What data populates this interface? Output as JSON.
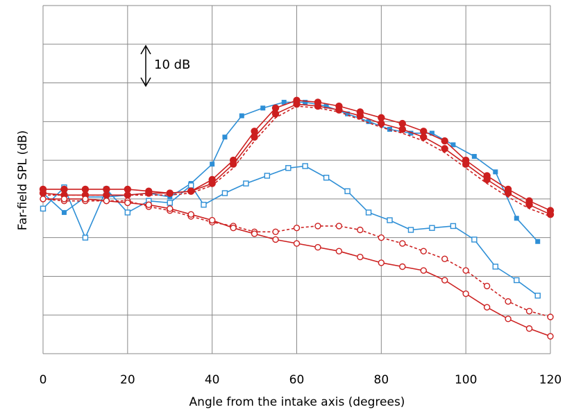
{
  "chart_data": {
    "type": "line",
    "title": "",
    "xlabel": "Angle from the intake axis (degrees)",
    "ylabel": "Far-field SPL (dB)",
    "xlim": [
      0,
      120
    ],
    "ylim": [
      0,
      90
    ],
    "x_ticks": [
      "0",
      "20",
      "40",
      "60",
      "80",
      "100",
      "120"
    ],
    "grid": true,
    "annotation": {
      "text": "10 dB",
      "note": "vertical double arrow marking a 10 dB span"
    },
    "colors": {
      "blue": "#2e8fd6",
      "red": "#cc1f1f",
      "grid": "#888888"
    },
    "series": [
      {
        "marker": "filled-square",
        "color": "#2e8fd6",
        "style": "solid",
        "x": [
          0,
          5,
          10,
          15,
          20,
          25,
          30,
          35,
          40,
          43,
          47,
          52,
          57,
          62,
          67,
          72,
          77,
          82,
          87,
          92,
          97,
          102,
          107,
          112,
          117
        ],
        "y": [
          41.5,
          36.5,
          40.5,
          40.5,
          41,
          41.5,
          40.5,
          44,
          49,
          56,
          61.5,
          63.5,
          65,
          65,
          64,
          62,
          60,
          58,
          57,
          57,
          54,
          51,
          47,
          35,
          29
        ]
      },
      {
        "marker": "open-square",
        "color": "#2e8fd6",
        "style": "solid",
        "x": [
          0,
          5,
          10,
          15,
          20,
          25,
          30,
          35,
          38,
          43,
          48,
          53,
          58,
          62,
          67,
          72,
          77,
          82,
          87,
          92,
          97,
          102,
          107,
          112,
          117
        ],
        "y": [
          37.5,
          43,
          30,
          42.5,
          36.5,
          39.5,
          39,
          43.5,
          38.5,
          41.5,
          44,
          46,
          48,
          48.5,
          45.5,
          42,
          36.5,
          34.5,
          32,
          32.5,
          33,
          29.5,
          22.5,
          19,
          15
        ]
      },
      {
        "marker": "filled-circle",
        "color": "#cc1f1f",
        "style": "solid",
        "x": [
          0,
          5,
          10,
          15,
          20,
          25,
          30,
          35,
          40,
          45,
          50,
          55,
          60,
          65,
          70,
          75,
          80,
          85,
          90,
          95,
          100,
          105,
          110,
          115,
          120
        ],
        "y": [
          42.5,
          42.5,
          42.5,
          42.5,
          42.5,
          42,
          41.5,
          42,
          45,
          50,
          57.5,
          63.5,
          65.5,
          65,
          64,
          62.5,
          61,
          59.5,
          57.5,
          55,
          50,
          46,
          42.5,
          39.5,
          37
        ]
      },
      {
        "marker": "filled-circle",
        "color": "#cc1f1f",
        "style": "solid",
        "x": [
          0,
          5,
          10,
          15,
          20,
          25,
          30,
          35,
          40,
          45,
          50,
          55,
          60,
          65,
          70,
          75,
          80,
          85,
          90,
          95,
          100,
          105,
          110,
          115,
          120
        ],
        "y": [
          41.5,
          41,
          41,
          41,
          41,
          41.5,
          41.5,
          42,
          44,
          49,
          56,
          62,
          64.5,
          64,
          63,
          61.5,
          59.5,
          58,
          56,
          53,
          49,
          45,
          41.5,
          38.5,
          36
        ]
      },
      {
        "marker": "none",
        "color": "#cc1f1f",
        "style": "dashed",
        "x": [
          0,
          5,
          10,
          15,
          20,
          25,
          30,
          35,
          40,
          45,
          50,
          55,
          60,
          65,
          70,
          75,
          80,
          85,
          90,
          95,
          100,
          105,
          110,
          115,
          120
        ],
        "y": [
          41,
          41,
          41,
          41,
          41,
          41,
          41,
          41.5,
          43.5,
          48,
          55,
          61,
          64,
          63.5,
          62.5,
          60.5,
          58.5,
          57,
          55,
          52,
          48,
          44,
          40.5,
          37.5,
          35.5
        ]
      },
      {
        "marker": "open-circle",
        "color": "#cc1f1f",
        "style": "dashed",
        "x": [
          0,
          5,
          10,
          15,
          20,
          25,
          30,
          35,
          40,
          45,
          50,
          55,
          60,
          65,
          70,
          75,
          80,
          85,
          90,
          95,
          100,
          105,
          110,
          115,
          120
        ],
        "y": [
          40,
          39.5,
          39.5,
          39.5,
          39.5,
          38,
          37,
          35.5,
          34,
          33,
          31.5,
          31.5,
          32.5,
          33,
          33,
          32,
          30,
          28.5,
          26.5,
          24.5,
          21.5,
          17.5,
          13.5,
          11,
          9.5
        ]
      },
      {
        "marker": "open-circle",
        "color": "#cc1f1f",
        "style": "solid",
        "x": [
          0,
          5,
          10,
          15,
          20,
          25,
          30,
          35,
          40,
          45,
          50,
          55,
          60,
          65,
          70,
          75,
          80,
          85,
          90,
          95,
          100,
          105,
          110,
          115,
          120
        ],
        "y": [
          40,
          40,
          40,
          39.5,
          39,
          38.5,
          37.5,
          36,
          34.5,
          32.5,
          31,
          29.5,
          28.5,
          27.5,
          26.5,
          25,
          23.5,
          22.5,
          21.5,
          19,
          15.5,
          12,
          9,
          6.5,
          4.5
        ]
      }
    ]
  }
}
